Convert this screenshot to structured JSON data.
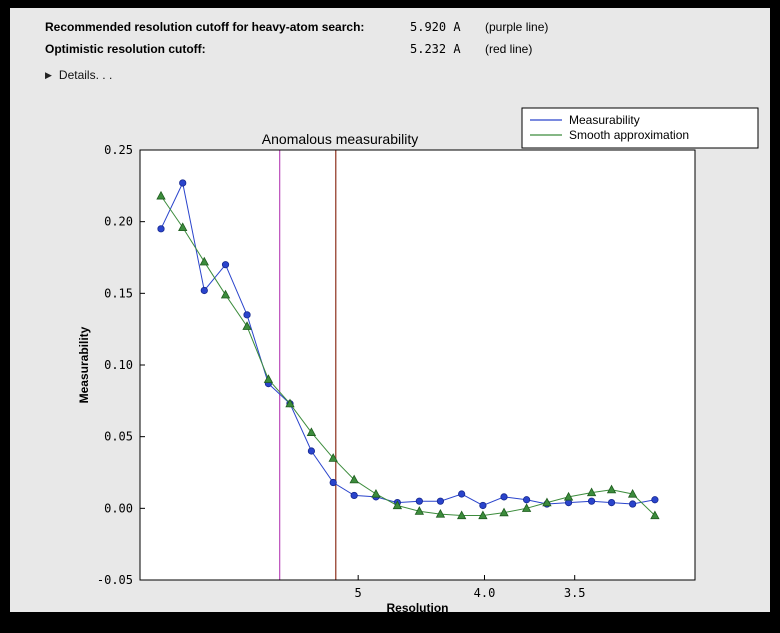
{
  "window": {
    "frame_color": "#000000",
    "panel_color": "#e8e8e8"
  },
  "header": {
    "rows": [
      {
        "label": "Recommended resolution cutoff for heavy-atom search:",
        "value": "5.920 A",
        "note": "(purple line)"
      },
      {
        "label": "Optimistic resolution cutoff:",
        "value": "5.232 A",
        "note": "(red line)"
      }
    ],
    "details_label": "Details. . .",
    "details_icon": "▶"
  },
  "chart_data": {
    "type": "line",
    "title": "Anomalous measurability",
    "xlabel": "Resolution",
    "ylabel": "Measurability",
    "x_axis": {
      "scale": "inverse-resolution-angstrom",
      "range_d": [
        8.8,
        3.0
      ],
      "ticks": [
        {
          "d": 5.0,
          "label": "5"
        },
        {
          "d": 4.0,
          "label": "4.0"
        },
        {
          "d": 3.5,
          "label": "3.5"
        }
      ]
    },
    "y_axis": {
      "range": [
        -0.05,
        0.25
      ],
      "ticks": [
        {
          "v": 0.25,
          "label": "0.25"
        },
        {
          "v": 0.2,
          "label": "0.20"
        },
        {
          "v": 0.15,
          "label": "0.15"
        },
        {
          "v": 0.1,
          "label": "0.10"
        },
        {
          "v": 0.05,
          "label": "0.05"
        },
        {
          "v": 0.0,
          "label": "0.00"
        },
        {
          "v": -0.05,
          "label": "-0.05"
        }
      ]
    },
    "x_d": [
      8.2,
      7.66,
      7.19,
      6.78,
      6.41,
      6.08,
      5.78,
      5.51,
      5.26,
      5.04,
      4.83,
      4.64,
      4.46,
      4.3,
      4.15,
      4.01,
      3.88,
      3.75,
      3.64,
      3.53,
      3.42,
      3.33,
      3.24,
      3.15
    ],
    "series": [
      {
        "name": "Measurability",
        "color": "#2a44cc",
        "edge": "#16288f",
        "marker": "circle",
        "values": [
          0.195,
          0.227,
          0.152,
          0.17,
          0.135,
          0.087,
          0.073,
          0.04,
          0.018,
          0.009,
          0.008,
          0.004,
          0.005,
          0.005,
          0.01,
          0.002,
          0.008,
          0.006,
          0.003,
          0.004,
          0.005,
          0.004,
          0.003,
          0.006
        ]
      },
      {
        "name": "Smooth approximation",
        "color": "#3c8c3c",
        "edge": "#1e5c1e",
        "marker": "triangle",
        "values": [
          0.218,
          0.196,
          0.172,
          0.149,
          0.127,
          0.09,
          0.073,
          0.053,
          0.035,
          0.02,
          0.01,
          0.002,
          -0.002,
          -0.004,
          -0.005,
          -0.005,
          -0.003,
          0.0,
          0.004,
          0.008,
          0.011,
          0.013,
          0.01,
          -0.005
        ]
      }
    ],
    "vlines": [
      {
        "d": 5.92,
        "color": "#c05ac0",
        "name": "purple-cutoff-line"
      },
      {
        "d": 5.232,
        "color": "#96402e",
        "name": "red-cutoff-line"
      }
    ],
    "legend": {
      "position": "top-right"
    }
  }
}
